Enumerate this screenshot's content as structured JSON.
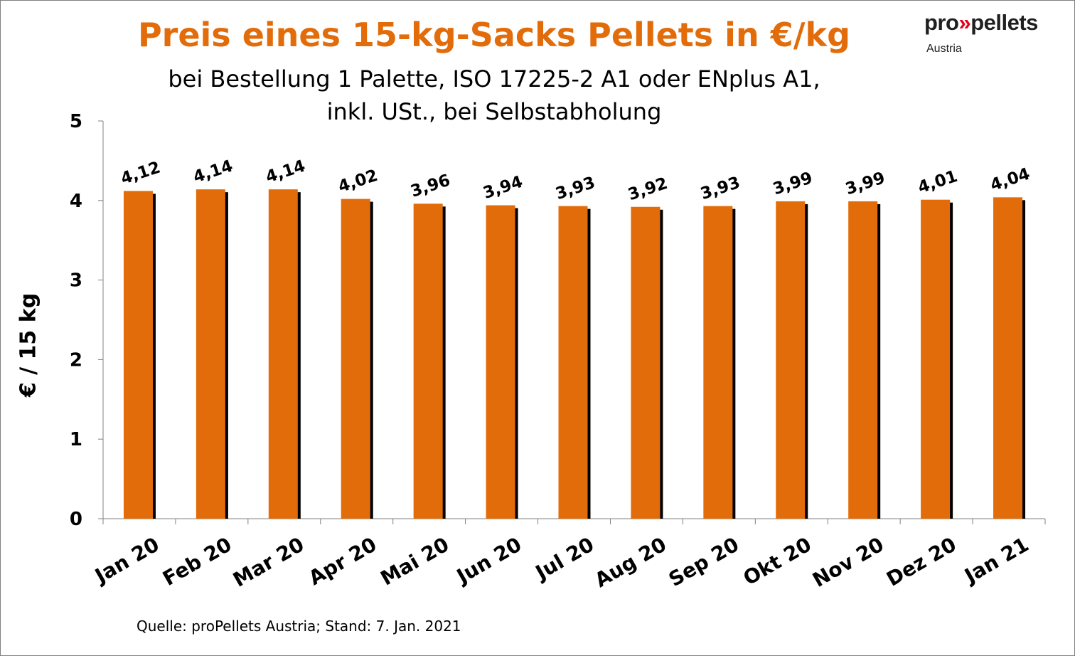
{
  "chart_data": {
    "type": "bar",
    "title": "Preis eines 15-kg-Sacks Pellets in €/kg",
    "subtitle_lines": [
      "bei Bestellung 1 Palette, ISO 17225-2 A1 oder ENplus A1,",
      "inkl. USt., bei Selbstabholung"
    ],
    "ylabel": "€ / 15 kg",
    "xlabel": "",
    "ylim": [
      0,
      5
    ],
    "yticks": [
      0,
      1,
      2,
      3,
      4,
      5
    ],
    "grid": false,
    "categories": [
      "Jan 20",
      "Feb 20",
      "Mar 20",
      "Apr 20",
      "Mai 20",
      "Jun 20",
      "Jul 20",
      "Aug 20",
      "Sep 20",
      "Okt 20",
      "Nov 20",
      "Dez 20",
      "Jan 21"
    ],
    "values": [
      4.12,
      4.14,
      4.14,
      4.02,
      3.96,
      3.94,
      3.93,
      3.92,
      3.93,
      3.99,
      3.99,
      4.01,
      4.04
    ],
    "value_labels": [
      "4,12",
      "4,14",
      "4,14",
      "4,02",
      "3,96",
      "3,94",
      "3,93",
      "3,92",
      "3,93",
      "3,99",
      "3,99",
      "4,01",
      "4,04"
    ],
    "bar_color": "#e36c0a",
    "shadow_color": "#000000"
  },
  "logo": {
    "name_pre": "pro",
    "name_arrows": "»",
    "name_post": "pellets",
    "sub": "Austria",
    "arrow_color": "#e2001a"
  },
  "source": "Quelle: proPellets Austria; Stand: 7. Jan. 2021"
}
